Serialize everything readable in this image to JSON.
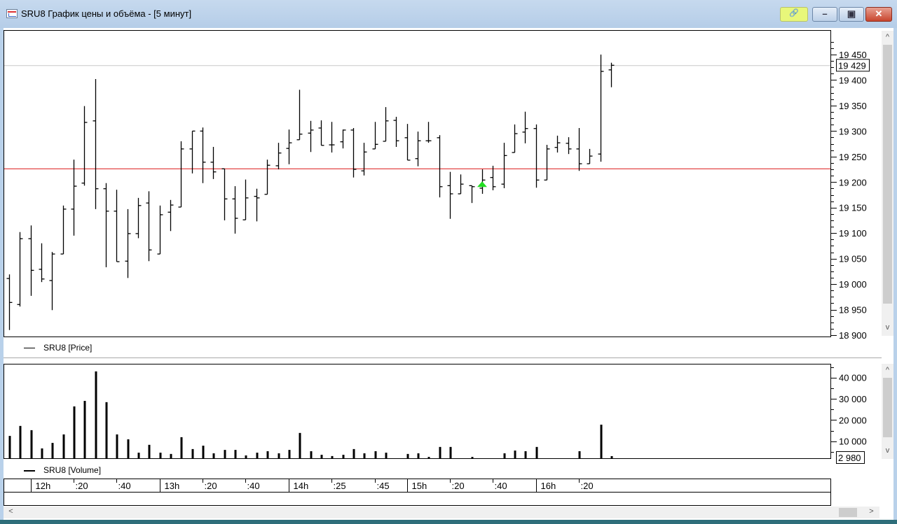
{
  "window": {
    "title": "SRU8 График цены и объёма - [5 минут]",
    "buttons": [
      {
        "name": "link-button",
        "icon": "chain-link-icon",
        "glyph": "🔗"
      },
      {
        "name": "minimize-button",
        "icon": "minimize-icon",
        "glyph": "▬"
      },
      {
        "name": "maximize-button",
        "icon": "maximize-icon",
        "glyph": "▣"
      },
      {
        "name": "close-button",
        "icon": "close-icon",
        "glyph": "✕"
      }
    ]
  },
  "chart_data": [
    {
      "type": "ohlc",
      "legend": "SRU8 [Price]",
      "ylim": [
        18900,
        19450
      ],
      "yticks": [
        18900,
        18950,
        19000,
        19050,
        19100,
        19150,
        19200,
        19250,
        19300,
        19350,
        19400,
        19450
      ],
      "last_price_label": "19 429",
      "last_price": 19429,
      "red_line_level": 19226,
      "red_line_color": "#e03030",
      "buy_marker": {
        "bar": 45,
        "price": 19196,
        "color": "#22dd22"
      },
      "bars_ohlc": [
        [
          19011,
          19019,
          18910,
          18964
        ],
        [
          18960,
          19102,
          18956,
          19089
        ],
        [
          19089,
          19115,
          18977,
          19027
        ],
        [
          19029,
          19080,
          19004,
          19010
        ],
        [
          19007,
          19063,
          18949,
          19059
        ],
        [
          19059,
          19154,
          19059,
          19147
        ],
        [
          19147,
          19244,
          19095,
          19192
        ],
        [
          19198,
          19349,
          19193,
          19317
        ],
        [
          19320,
          19402,
          19147,
          19187
        ],
        [
          19187,
          19198,
          19033,
          19143
        ],
        [
          19143,
          19185,
          19044,
          19044
        ],
        [
          19045,
          19147,
          19012,
          19099
        ],
        [
          19099,
          19169,
          19090,
          19154
        ],
        [
          19159,
          19182,
          19045,
          19067
        ],
        [
          19059,
          19154,
          19059,
          19136
        ],
        [
          19141,
          19165,
          19104,
          19155
        ],
        [
          19151,
          19280,
          19151,
          19265
        ],
        [
          19265,
          19300,
          19217,
          19300
        ],
        [
          19300,
          19307,
          19198,
          19239
        ],
        [
          19239,
          19269,
          19206,
          19220
        ],
        [
          19226,
          19226,
          19125,
          19167
        ],
        [
          19167,
          19192,
          19099,
          19129
        ],
        [
          19126,
          19205,
          19126,
          19169
        ],
        [
          19172,
          19187,
          19123,
          19169
        ],
        [
          19176,
          19244,
          19176,
          19233
        ],
        [
          19232,
          19277,
          19225,
          19257
        ],
        [
          19266,
          19303,
          19235,
          19277
        ],
        [
          19283,
          19381,
          19283,
          19294
        ],
        [
          19296,
          19320,
          19259,
          19302
        ],
        [
          19306,
          19321,
          19272,
          19272
        ],
        [
          19273,
          19318,
          19258,
          19273
        ],
        [
          19279,
          19303,
          19266,
          19302
        ],
        [
          19302,
          19306,
          19209,
          19225
        ],
        [
          19222,
          19277,
          19213,
          19259
        ],
        [
          19265,
          19318,
          19265,
          19274
        ],
        [
          19280,
          19347,
          19280,
          19320
        ],
        [
          19321,
          19328,
          19269,
          19281
        ],
        [
          19287,
          19314,
          19243,
          19243
        ],
        [
          19246,
          19299,
          19231,
          19281
        ],
        [
          19281,
          19318,
          19277,
          19281
        ],
        [
          19287,
          19292,
          19170,
          19191
        ],
        [
          19193,
          19220,
          19128,
          19177
        ],
        [
          19177,
          19215,
          19177,
          19196
        ],
        [
          19193,
          19193,
          19159,
          19191
        ],
        [
          19188,
          19225,
          19177,
          19204
        ],
        [
          19209,
          19232,
          19184,
          19191
        ],
        [
          19196,
          19277,
          19188,
          19252
        ],
        [
          19258,
          19313,
          19258,
          19295
        ],
        [
          19298,
          19338,
          19276,
          19305
        ],
        [
          19305,
          19313,
          19189,
          19204
        ],
        [
          19204,
          19273,
          19204,
          19265
        ],
        [
          19268,
          19291,
          19258,
          19277
        ],
        [
          19276,
          19288,
          19255,
          19265
        ],
        [
          19265,
          19306,
          19222,
          19236
        ],
        [
          19236,
          19265,
          19236,
          19251
        ],
        [
          19255,
          19450,
          19240,
          19417
        ],
        [
          19420,
          19434,
          19386,
          19429
        ]
      ]
    },
    {
      "type": "bar",
      "legend": "SRU8 [Volume]",
      "ylim": [
        0,
        45000
      ],
      "yticks": [
        10000,
        20000,
        30000,
        40000
      ],
      "ytick_labels": [
        "10 000",
        "20 000",
        "30 000",
        "40 000"
      ],
      "last_volume_label": "2 980",
      "values": [
        12500,
        17200,
        15200,
        6600,
        9200,
        13200,
        26400,
        29000,
        42900,
        28400,
        13200,
        10900,
        4600,
        8300,
        4600,
        4000,
        11900,
        6300,
        7900,
        4300,
        5900,
        5900,
        3300,
        4600,
        5300,
        4300,
        5900,
        13900,
        5300,
        3600,
        3000,
        3600,
        6300,
        4300,
        5300,
        4600,
        0,
        4000,
        4300,
        2600,
        7300,
        7300,
        0,
        2600,
        0,
        0,
        4300,
        5600,
        5300,
        7300,
        0,
        0,
        0,
        5300,
        0,
        17800,
        2980
      ]
    }
  ],
  "time_axis": {
    "ticks": [
      {
        "label": "12h",
        "bar": 3,
        "major": true
      },
      {
        "label": ":20",
        "bar": 7,
        "major": false
      },
      {
        "label": ":40",
        "bar": 11,
        "major": false
      },
      {
        "label": "13h",
        "bar": 15,
        "major": true
      },
      {
        "label": ":20",
        "bar": 19,
        "major": false
      },
      {
        "label": ":40",
        "bar": 23,
        "major": false
      },
      {
        "label": "14h",
        "bar": 27,
        "major": true
      },
      {
        "label": ":25",
        "bar": 31,
        "major": false
      },
      {
        "label": ":45",
        "bar": 35,
        "major": false
      },
      {
        "label": "15h",
        "bar": 38,
        "major": true
      },
      {
        "label": ":20",
        "bar": 42,
        "major": false
      },
      {
        "label": ":40",
        "bar": 46,
        "major": false
      },
      {
        "label": "16h",
        "bar": 50,
        "major": true
      },
      {
        "label": ":20",
        "bar": 54,
        "major": false
      }
    ]
  },
  "scrollbars": {
    "up": "^",
    "down": "v",
    "left": "<",
    "right": ">"
  }
}
